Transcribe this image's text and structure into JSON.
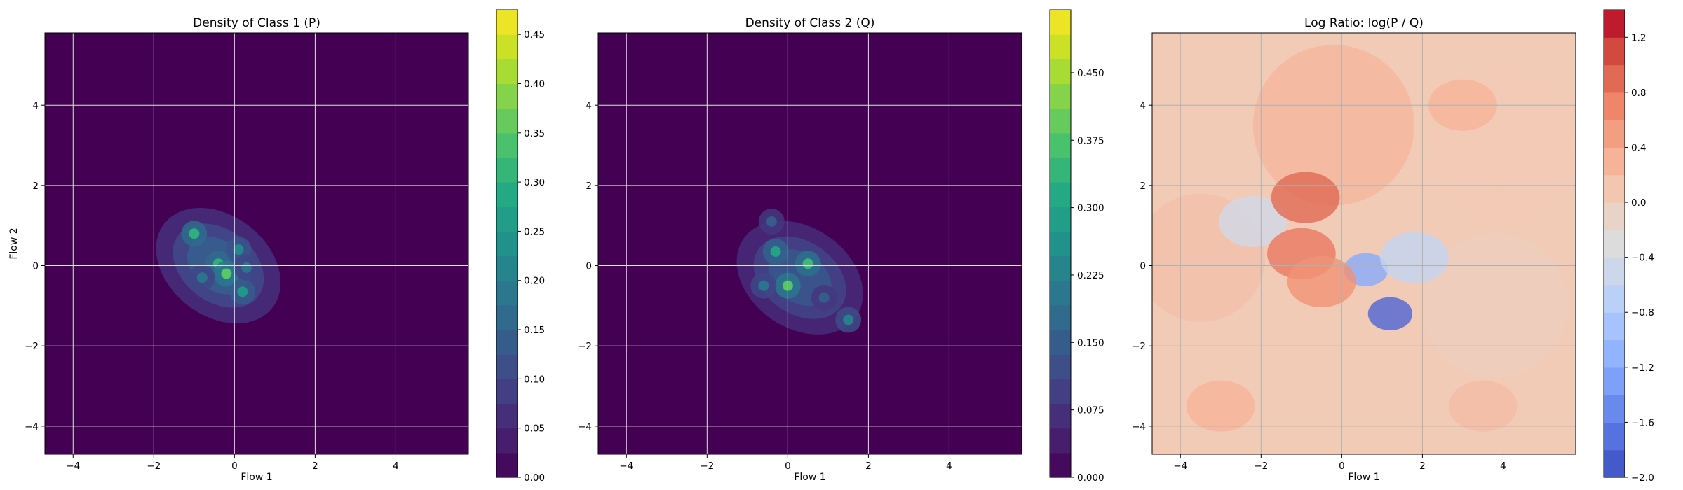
{
  "chart_data": [
    {
      "type": "heatmap",
      "subtype": "filled-contour",
      "title": "Density of Class 1 (P)",
      "xlabel": "Flow 1",
      "ylabel": "Flow 2",
      "xlim": [
        -4.7,
        5.8
      ],
      "ylim": [
        -4.7,
        5.8
      ],
      "xticks": [
        -4,
        -2,
        0,
        2,
        4
      ],
      "yticks": [
        -4,
        -2,
        0,
        2,
        4
      ],
      "xtick_labels": [
        "−4",
        "−2",
        "0",
        "2",
        "4"
      ],
      "ytick_labels": [
        "−4",
        "−2",
        "0",
        "2",
        "4"
      ],
      "grid": true,
      "colormap": "viridis",
      "colorbar": {
        "min": 0.0,
        "max": 0.475,
        "ticks": [
          0.0,
          0.05,
          0.1,
          0.15,
          0.2,
          0.25,
          0.3,
          0.35,
          0.4,
          0.45
        ],
        "tick_labels": [
          "0.00",
          "0.05",
          "0.10",
          "0.15",
          "0.20",
          "0.25",
          "0.30",
          "0.35",
          "0.40",
          "0.45"
        ]
      },
      "density_peaks": [
        {
          "x": -1.0,
          "y": 0.8,
          "value": 0.3
        },
        {
          "x": -0.4,
          "y": 0.05,
          "value": 0.3
        },
        {
          "x": -0.2,
          "y": -0.2,
          "value": 0.35
        },
        {
          "x": 0.1,
          "y": 0.4,
          "value": 0.22
        },
        {
          "x": 0.2,
          "y": -0.65,
          "value": 0.25
        },
        {
          "x": -0.8,
          "y": -0.3,
          "value": 0.18
        },
        {
          "x": 0.3,
          "y": -0.05,
          "value": 0.18
        }
      ]
    },
    {
      "type": "heatmap",
      "subtype": "filled-contour",
      "title": "Density of Class 2 (Q)",
      "xlabel": "Flow 1",
      "ylabel": "",
      "xlim": [
        -4.7,
        5.8
      ],
      "ylim": [
        -4.7,
        5.8
      ],
      "xticks": [
        -4,
        -2,
        0,
        2,
        4
      ],
      "yticks": [
        -4,
        -2,
        0,
        2,
        4
      ],
      "xtick_labels": [
        "−4",
        "−2",
        "0",
        "2",
        "4"
      ],
      "ytick_labels": [
        "−4",
        "−2",
        "0",
        "2",
        "4"
      ],
      "grid": true,
      "colormap": "viridis",
      "colorbar": {
        "min": 0.0,
        "max": 0.52,
        "ticks": [
          0.0,
          0.075,
          0.15,
          0.225,
          0.3,
          0.375,
          0.45
        ],
        "tick_labels": [
          "0.000",
          "0.075",
          "0.150",
          "0.225",
          "0.300",
          "0.375",
          "0.450"
        ]
      },
      "density_peaks": [
        {
          "x": -0.3,
          "y": 0.35,
          "value": 0.3
        },
        {
          "x": 0.5,
          "y": 0.05,
          "value": 0.35
        },
        {
          "x": 0.0,
          "y": -0.5,
          "value": 0.38
        },
        {
          "x": -0.6,
          "y": -0.5,
          "value": 0.2
        },
        {
          "x": 1.5,
          "y": -1.35,
          "value": 0.22
        },
        {
          "x": 0.9,
          "y": -0.8,
          "value": 0.15
        },
        {
          "x": -0.4,
          "y": 1.1,
          "value": 0.15
        }
      ]
    },
    {
      "type": "heatmap",
      "subtype": "filled-contour",
      "title": "Log Ratio: log(P / Q)",
      "xlabel": "Flow 1",
      "ylabel": "",
      "xlim": [
        -4.7,
        5.8
      ],
      "ylim": [
        -4.7,
        5.8
      ],
      "xticks": [
        -4,
        -2,
        0,
        2,
        4
      ],
      "yticks": [
        -4,
        -2,
        0,
        2,
        4
      ],
      "xtick_labels": [
        "−4",
        "−2",
        "0",
        "2",
        "4"
      ],
      "ytick_labels": [
        "−4",
        "−2",
        "0",
        "2",
        "4"
      ],
      "grid": true,
      "colormap": "coolwarm",
      "colorbar": {
        "min": -2.0,
        "max": 1.4,
        "ticks": [
          -2.0,
          -1.6,
          -1.2,
          -0.8,
          -0.4,
          0.0,
          0.4,
          0.8,
          1.2
        ],
        "tick_labels": [
          "−2.0",
          "−1.6",
          "−1.2",
          "−0.8",
          "−0.4",
          "0.0",
          "0.4",
          "0.8",
          "1.2"
        ]
      },
      "regions": [
        {
          "x": 1.2,
          "y": -1.2,
          "value": -1.8
        },
        {
          "x": 0.6,
          "y": -0.1,
          "value": -1.2
        },
        {
          "x": 1.8,
          "y": 0.2,
          "value": -0.6
        },
        {
          "x": -2.2,
          "y": 1.1,
          "value": -0.45
        },
        {
          "x": -0.9,
          "y": 1.7,
          "value": 0.9
        },
        {
          "x": -1.0,
          "y": 0.3,
          "value": 0.8
        },
        {
          "x": -0.5,
          "y": -0.4,
          "value": 0.6
        },
        {
          "x": 3.0,
          "y": 4.0,
          "value": 0.3
        },
        {
          "x": -3.0,
          "y": -3.5,
          "value": 0.3
        },
        {
          "x": 3.5,
          "y": -3.5,
          "value": 0.2
        }
      ]
    }
  ]
}
